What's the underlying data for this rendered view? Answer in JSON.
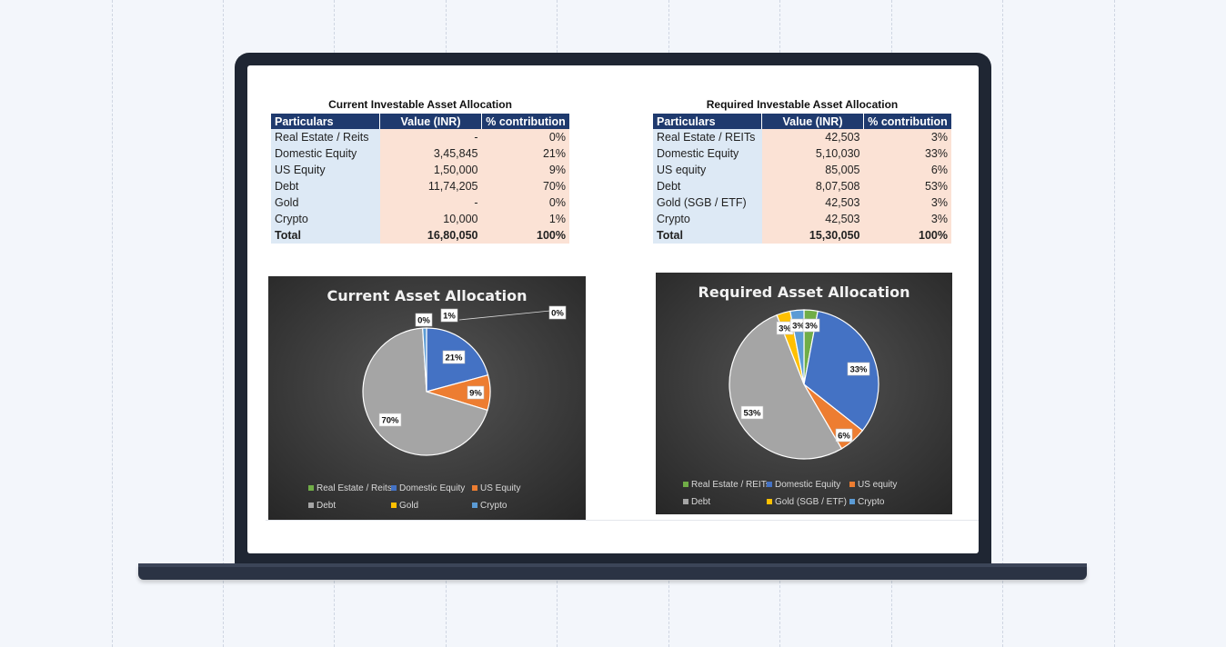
{
  "colors": {
    "real_estate": "#70ad47",
    "domestic_equity": "#4472c4",
    "us_equity": "#ed7d31",
    "debt": "#a5a5a5",
    "gold": "#ffc000",
    "crypto": "#5b9bd5"
  },
  "tables": {
    "current": {
      "title": "Current Investable Asset Allocation",
      "headers": [
        "Particulars",
        "Value (INR)",
        "% contribution"
      ],
      "rows": [
        [
          "Real Estate / Reits",
          "-",
          "0%"
        ],
        [
          "Domestic Equity",
          "3,45,845",
          "21%"
        ],
        [
          "US Equity",
          "1,50,000",
          "9%"
        ],
        [
          "Debt",
          "11,74,205",
          "70%"
        ],
        [
          "Gold",
          "-",
          "0%"
        ],
        [
          "Crypto",
          "10,000",
          "1%"
        ]
      ],
      "total": [
        "Total",
        "16,80,050",
        "100%"
      ]
    },
    "required": {
      "title": "Required Investable Asset Allocation",
      "headers": [
        "Particulars",
        "Value (INR)",
        "% contribution"
      ],
      "rows": [
        [
          "Real Estate / REITs",
          "42,503",
          "3%"
        ],
        [
          "Domestic Equity",
          "5,10,030",
          "33%"
        ],
        [
          "US equity",
          "85,005",
          "6%"
        ],
        [
          "Debt",
          "8,07,508",
          "53%"
        ],
        [
          "Gold (SGB / ETF)",
          "42,503",
          "3%"
        ],
        [
          "Crypto",
          "42,503",
          "3%"
        ]
      ],
      "total": [
        "Total",
        "15,30,050",
        "100%"
      ]
    }
  },
  "chart_data": [
    {
      "type": "pie",
      "title": "Current Asset Allocation",
      "categories": [
        "Real Estate / Reits",
        "Domestic Equity",
        "US Equity",
        "Debt",
        "Gold",
        "Crypto"
      ],
      "values": [
        0,
        21,
        9,
        70,
        0,
        1
      ],
      "data_labels": [
        "0%",
        "21%",
        "9%",
        "70%",
        "0%",
        "1%"
      ],
      "legend": "bottom"
    },
    {
      "type": "pie",
      "title": "Required Asset Allocation",
      "categories": [
        "Real Estate / REITs",
        "Domestic Equity",
        "US equity",
        "Debt",
        "Gold (SGB / ETF)",
        "Crypto"
      ],
      "values": [
        3,
        33,
        6,
        53,
        3,
        3
      ],
      "data_labels": [
        "3%",
        "33%",
        "6%",
        "53%",
        "3%",
        "3%"
      ],
      "legend": "bottom"
    }
  ]
}
